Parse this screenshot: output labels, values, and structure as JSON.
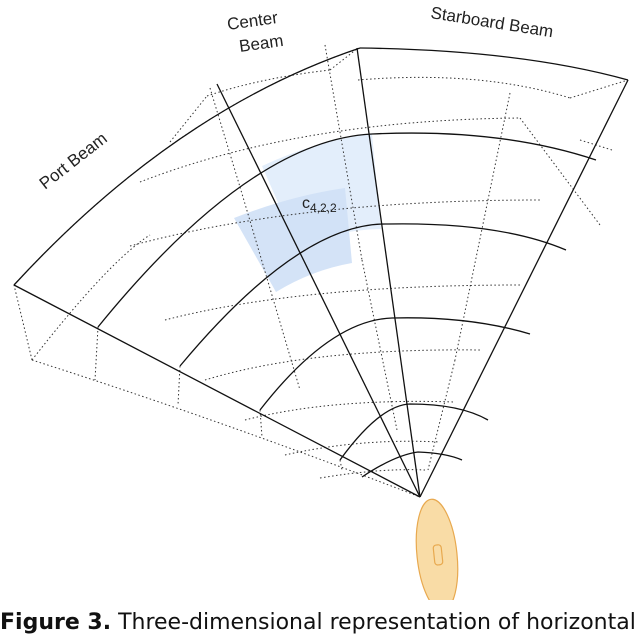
{
  "beams": {
    "port": "Port Beam",
    "center_line1": "Center",
    "center_line2": "Beam",
    "starboard": "Starboard Beam"
  },
  "cell": {
    "base": "c",
    "subscript": "4,2,2"
  },
  "caption": {
    "label": "Figure 3.",
    "text": " Three-dimensional representation of horizontal and vertical beams"
  },
  "colors": {
    "cell_fill": "#cfe0f6",
    "cell_fill_light": "#e3eefb",
    "vessel": "#f9dca6",
    "vessel_stroke": "#e8a94f",
    "line": "#111111"
  }
}
